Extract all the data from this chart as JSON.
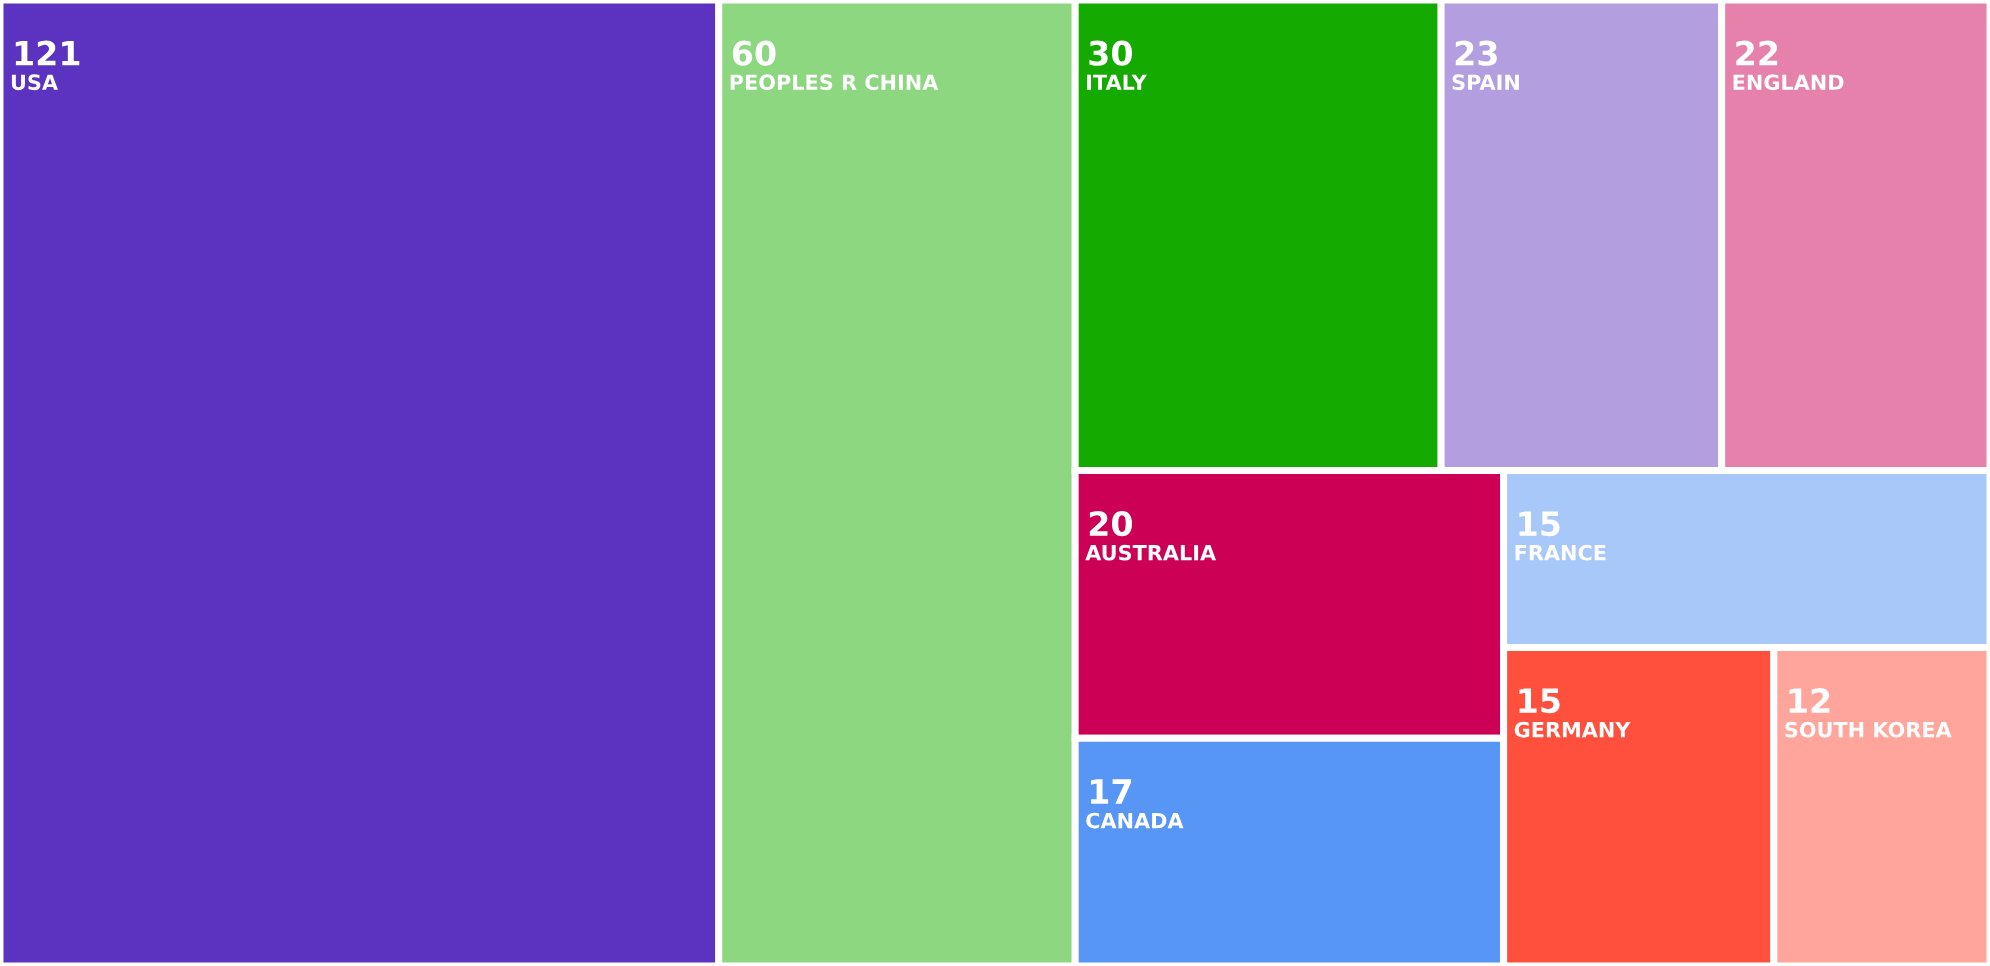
{
  "chart_data": {
    "type": "other",
    "data_labels": true,
    "categories": [
      "USA",
      "PEOPLES R CHINA",
      "ITALY",
      "SPAIN",
      "ENGLAND",
      "AUSTRALIA",
      "CANADA",
      "FRANCE",
      "GERMANY",
      "SOUTH KOREA"
    ],
    "values": [
      121,
      60,
      30,
      23,
      22,
      20,
      17,
      15,
      15,
      12
    ],
    "colors": [
      "#5c33c0",
      "#8cd780",
      "#14aa00",
      "#b39fe0",
      "#e681ac",
      "#cc0055",
      "#5896f5",
      "#a9c8fa",
      "#ff503e",
      "#ffa59c"
    ]
  }
}
